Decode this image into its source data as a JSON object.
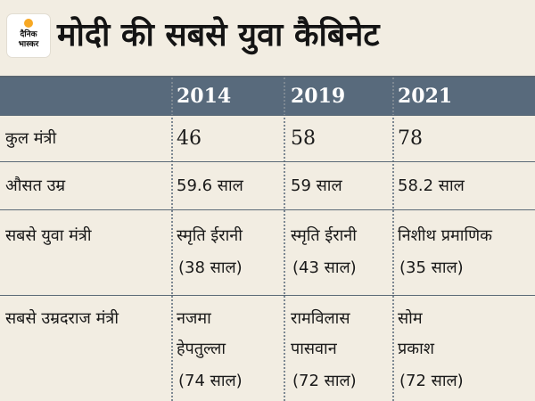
{
  "header": {
    "logo_text_line1": "दैनिक",
    "logo_text_line2": "भास्कर",
    "title": "मोदी की सबसे युवा कैबिनेट"
  },
  "table": {
    "columns": [
      "2014",
      "2019",
      "2021"
    ],
    "rows": [
      {
        "label": "कुल मंत्री",
        "cells": [
          [
            "46"
          ],
          [
            "58"
          ],
          [
            "78"
          ]
        ]
      },
      {
        "label": "औसत उम्र",
        "cells": [
          [
            "59.6 साल"
          ],
          [
            "59 साल"
          ],
          [
            "58.2 साल"
          ]
        ]
      },
      {
        "label": "सबसे युवा मंत्री",
        "cells": [
          [
            "स्मृति ईरानी",
            "(38 साल)"
          ],
          [
            "स्मृति ईरानी",
            "(43 साल)"
          ],
          [
            "निशीथ प्रमाणिक",
            "(35 साल)"
          ]
        ]
      },
      {
        "label": "सबसे उम्रदराज मंत्री",
        "cells": [
          [
            "नजमा",
            "हेपतुल्ला",
            "(74 साल)"
          ],
          [
            "रामविलास",
            "पासवान",
            "(72 साल)"
          ],
          [
            "सोम",
            "प्रकाश",
            "(72 साल)"
          ]
        ]
      }
    ]
  },
  "colors": {
    "background": "#f2ede2",
    "header_bar": "#586a7c",
    "logo_accent": "#f7a823"
  }
}
